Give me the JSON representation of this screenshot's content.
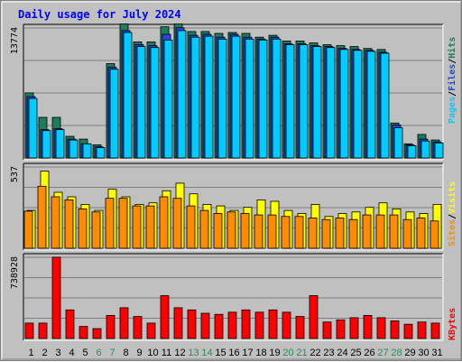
{
  "chart_data": {
    "type": "bar",
    "title": "Daily usage for July 2024",
    "colors": {
      "background": "#c0c0c0",
      "title": "#0000ff",
      "hits": "#1e7b5e",
      "files": "#2448e0",
      "pages": "#00ccff",
      "visits": "#ffff00",
      "sites": "#ff8c00",
      "kbytes": "#ff0000",
      "weekend_label": "#2e8b57",
      "weekday_label": "#000000"
    },
    "days": [
      "1",
      "2",
      "3",
      "4",
      "5",
      "6",
      "7",
      "8",
      "9",
      "10",
      "11",
      "12",
      "13",
      "14",
      "15",
      "16",
      "17",
      "18",
      "19",
      "20",
      "21",
      "22",
      "23",
      "24",
      "25",
      "26",
      "27",
      "28",
      "29",
      "30",
      "31"
    ],
    "weekend_days": [
      "6",
      "7",
      "13",
      "14",
      "20",
      "21",
      "27",
      "28"
    ],
    "panels": [
      {
        "id": "hits-files-pages",
        "ymax_label": "13774",
        "ymax": 13774,
        "legend": [
          {
            "text": "Pages",
            "color": "#00ccff"
          },
          {
            "text": "Files",
            "color": "#2448e0"
          },
          {
            "text": "Hits",
            "color": "#1e7b5e"
          }
        ],
        "series": [
          {
            "name": "Hits",
            "values": [
              6900,
              4300,
              4300,
              2300,
              2000,
              1400,
              10000,
              14200,
              12300,
              12300,
              13900,
              14200,
              13400,
              13400,
              13200,
              13300,
              13200,
              12800,
              13000,
              12400,
              12400,
              12200,
              12000,
              11900,
              11800,
              11600,
              11500,
              3700,
              1500,
              2500,
              1900
            ]
          },
          {
            "name": "Files",
            "values": [
              6500,
              3000,
              3100,
              2000,
              1500,
              1200,
              9600,
              13500,
              12000,
              11900,
              13100,
              13800,
              13000,
              13100,
              12800,
              13100,
              12800,
              12600,
              12800,
              12100,
              12100,
              11900,
              11800,
              11600,
              11500,
              11400,
              11200,
              3500,
              1400,
              2000,
              1700
            ]
          },
          {
            "name": "Pages",
            "values": [
              6300,
              2900,
              3000,
              1900,
              1500,
              1100,
              9400,
              13300,
              11800,
              11700,
              12500,
              13500,
              12800,
              12900,
              12600,
              12900,
              12600,
              12500,
              12600,
              12000,
              12000,
              11800,
              11700,
              11500,
              11400,
              11300,
              11100,
              3200,
              1300,
              1800,
              1600
            ]
          }
        ]
      },
      {
        "id": "visits-sites",
        "ymax_label": "537",
        "ymax": 537,
        "legend": [
          {
            "text": "Sites",
            "color": "#ff8c00"
          },
          {
            "text": "Visits",
            "color": "#ffff00"
          }
        ],
        "series": [
          {
            "name": "Visits",
            "values": [
              250,
              510,
              370,
              340,
              290,
              250,
              390,
              340,
              290,
              300,
              380,
              430,
              360,
              290,
              280,
              250,
              270,
              320,
              310,
              250,
              230,
              290,
              210,
              230,
              240,
              270,
              300,
              260,
              240,
              230,
              290
            ]
          },
          {
            "name": "Sites",
            "values": [
              245,
              410,
              340,
              320,
              260,
              240,
              330,
              330,
              280,
              280,
              340,
              330,
              280,
              250,
              230,
              240,
              230,
              220,
              220,
              210,
              210,
              200,
              190,
              200,
              190,
              220,
              220,
              220,
              190,
              200,
              180
            ]
          }
        ]
      },
      {
        "id": "kbytes",
        "ymax_label": "738928",
        "ymax": 738928,
        "legend": [
          {
            "text": "KBytes",
            "color": "#ff0000"
          }
        ],
        "series": [
          {
            "name": "KBytes",
            "values": [
              140000,
              140000,
              740000,
              260000,
              110000,
              90000,
              210000,
              280000,
              200000,
              140000,
              390000,
              280000,
              260000,
              230000,
              220000,
              240000,
              260000,
              240000,
              260000,
              240000,
              200000,
              390000,
              150000,
              170000,
              190000,
              210000,
              190000,
              160000,
              130000,
              150000,
              140000
            ]
          }
        ]
      }
    ]
  }
}
